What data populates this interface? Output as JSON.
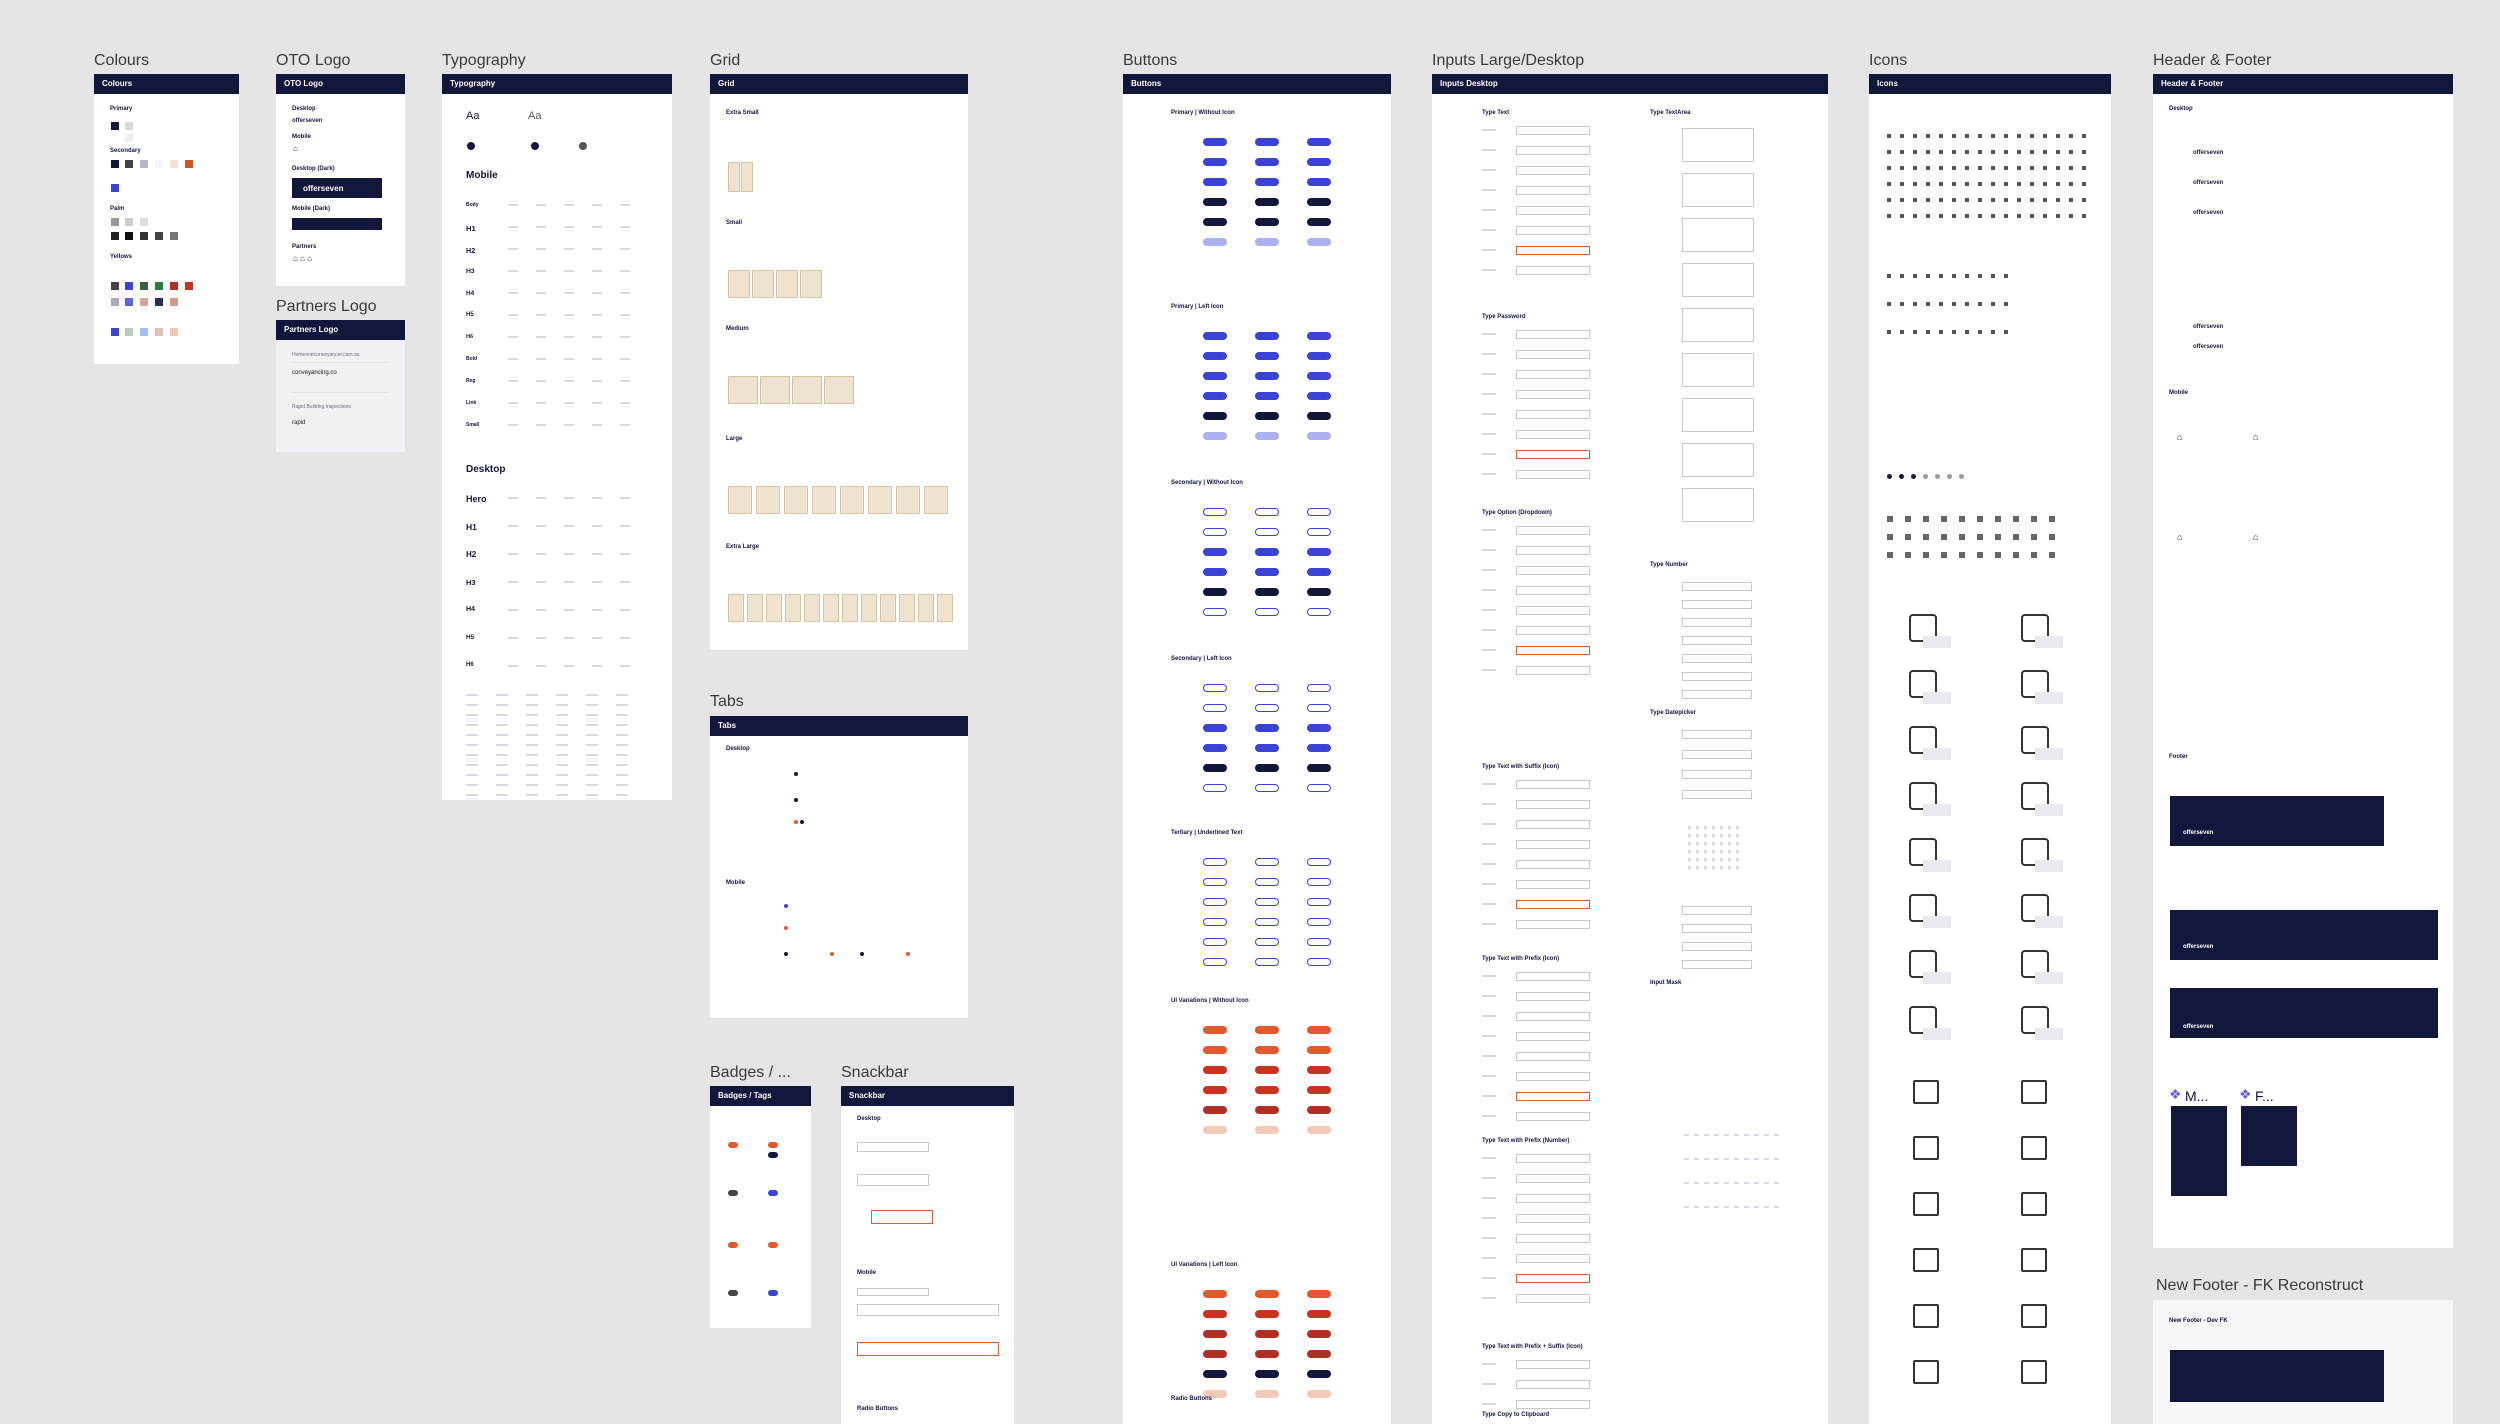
{
  "frames": {
    "colours": {
      "label": "Colours",
      "header": "Colours",
      "sections": [
        "Primary",
        "Secondary",
        "Palm",
        "Yellows"
      ]
    },
    "oto_logo": {
      "label": "OTO Logo",
      "header": "OTO Logo",
      "sections": [
        "Desktop",
        "Mobile",
        "Desktop (Dark)",
        "Mobile (Dark)",
        "Partners"
      ],
      "logo_text": "offerseven"
    },
    "partners_logo": {
      "label": "Partners Logo",
      "header": "Partners Logo",
      "items": [
        "Homeoneconveyancer.com.au",
        "conveyancing.co",
        "Rapid Building Inspections"
      ]
    },
    "typography": {
      "label": "Typography",
      "header": "Typography",
      "sample_a": "Aa",
      "sample_b": "Aa",
      "mobile": "Mobile",
      "desktop": "Desktop",
      "rows_mobile": [
        "Body",
        "H1",
        "H2",
        "H3",
        "H4",
        "H5",
        "H6",
        "Bold",
        "Reg",
        "Link",
        "Small"
      ],
      "rows_desktop": [
        "Hero",
        "H1",
        "H2",
        "H3",
        "H4",
        "H5",
        "H6"
      ]
    },
    "grid": {
      "label": "Grid",
      "header": "Grid",
      "sections": [
        "Extra Small",
        "Small",
        "Medium",
        "Large",
        "Extra Large"
      ]
    },
    "tabs": {
      "label": "Tabs",
      "header": "Tabs",
      "sections": [
        "Desktop",
        "Mobile"
      ]
    },
    "badges": {
      "label": "Badges / ...",
      "header": "Badges / Tags"
    },
    "snackbar": {
      "label": "Snackbar",
      "header": "Snackbar",
      "sections": [
        "Desktop",
        "Mobile",
        "Radio Buttons"
      ]
    },
    "buttons": {
      "label": "Buttons",
      "header": "Buttons",
      "sections": [
        "Primary | Without Icon",
        "Primary | Left Icon",
        "Secondary | Without Icon",
        "Secondary | Left Icon",
        "Tertiary | Underlined Text",
        "UI Variations | Without Icon",
        "UI Variations | Left Icon",
        "Radio Buttons"
      ]
    },
    "inputs": {
      "label": "Inputs Large/Desktop",
      "header": "Inputs Desktop",
      "left_sections": [
        "Type Text",
        "Type Password",
        "Type Option (Dropdown)",
        "Type Text with Suffix (Icon)",
        "Type Text with Prefix (Icon)",
        "Type Text with Prefix (Number)",
        "Type Text with Prefix + Suffix (Icon)",
        "Type Copy to Clipboard"
      ],
      "right_sections": [
        "Type TextArea",
        "Type Number",
        "Type Datepicker",
        "Input Mask"
      ]
    },
    "icons": {
      "label": "Icons",
      "header": "Icons"
    },
    "header_footer": {
      "label": "Header & Footer",
      "header": "Header & Footer",
      "sections": [
        "Desktop",
        "Mobile",
        "Footer"
      ],
      "logo_text": "offerseven"
    },
    "new_footer": {
      "label": "New Footer - FK Reconstruct",
      "sub": "New Footer - Dev FK"
    },
    "components": [
      {
        "label": "M..."
      },
      {
        "label": "F..."
      }
    ]
  },
  "colors": {
    "navy": "#13163b",
    "blue": "#3b43d6",
    "orange": "#e3582d",
    "red": "#c9321f",
    "cream": "#efe3cf"
  }
}
